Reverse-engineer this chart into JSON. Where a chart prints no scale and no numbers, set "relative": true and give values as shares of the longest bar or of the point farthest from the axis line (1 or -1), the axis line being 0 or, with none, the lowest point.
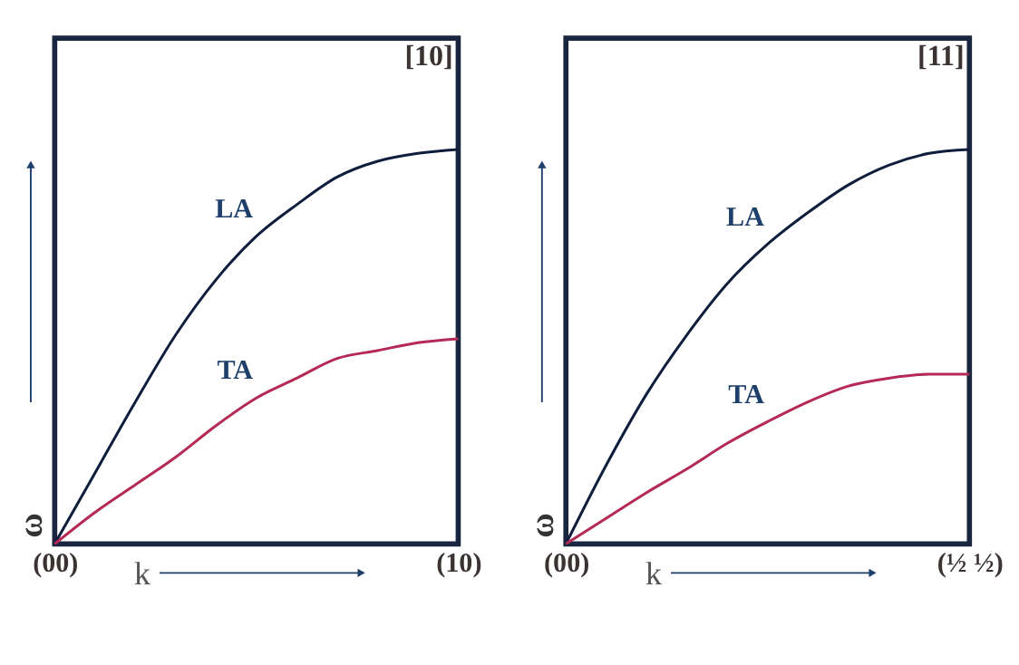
{
  "chart_data": [
    {
      "type": "line",
      "relative": true,
      "annotations": [
        "[10]"
      ],
      "xlabel": "k",
      "ylabel": "ω",
      "categories": [
        "(00)",
        null,
        null,
        null,
        null,
        null,
        null,
        null,
        null,
        null,
        "(10)"
      ],
      "tick_labels": "x",
      "grid": false,
      "marker": "none",
      "line_style": "solid",
      "series": [
        {
          "name": "LA",
          "color": "#0f1e3c",
          "values": [
            0,
            0.18,
            0.36,
            0.53,
            0.67,
            0.78,
            0.86,
            0.93,
            0.97,
            0.99,
            1
          ]
        },
        {
          "name": "TA",
          "color": "#b52a55",
          "values": [
            0,
            0.08,
            0.15,
            0.22,
            0.3,
            0.37,
            0.42,
            0.47,
            0.49,
            0.51,
            0.52
          ]
        }
      ]
    },
    {
      "type": "line",
      "relative": true,
      "annotations": [
        "[11]"
      ],
      "xlabel": "k",
      "ylabel": "ω",
      "categories": [
        "(00)",
        null,
        null,
        null,
        null,
        null,
        null,
        null,
        null,
        null,
        "(½ ½)"
      ],
      "tick_labels": "x",
      "grid": false,
      "marker": "none",
      "line_style": "solid",
      "series": [
        {
          "name": "LA",
          "color": "#0f1e3c",
          "values": [
            0,
            0.2,
            0.38,
            0.53,
            0.66,
            0.76,
            0.84,
            0.91,
            0.96,
            0.99,
            1
          ]
        },
        {
          "name": "TA",
          "color": "#b52a55",
          "values": [
            0,
            0.065,
            0.13,
            0.19,
            0.255,
            0.31,
            0.36,
            0.4,
            0.42,
            0.43,
            0.43
          ]
        }
      ]
    }
  ]
}
